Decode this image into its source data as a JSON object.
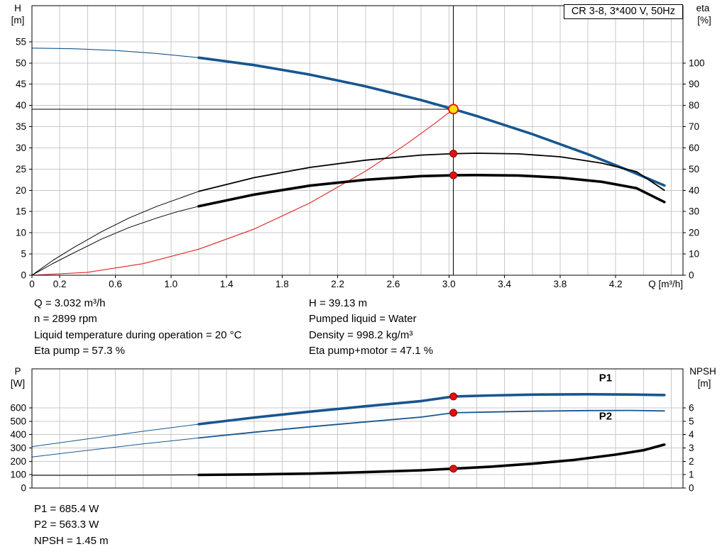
{
  "colors": {
    "blue": "#17568f",
    "black": "#000000",
    "red": "#e02222",
    "grid": "#c8c8c8",
    "dot_fill": "#e01111",
    "dot_edge": "#8f0000",
    "marker_fill": "#ffe200",
    "marker_ring": "#e01111"
  },
  "info_top": {
    "left": [
      "Q = 3.032 m³/h",
      "n = 2899 rpm",
      "Liquid temperature during operation = 20 °C",
      "Eta pump = 57.3 %"
    ],
    "right": [
      "H = 39.13 m",
      "Pumped liquid = Water",
      "Density = 998.2 kg/m³",
      "Eta pump+motor = 47.1 %"
    ]
  },
  "info_bottom": [
    "P1 = 685.4 W",
    "P2 = 563.3 W",
    "NPSH = 1.45 m"
  ],
  "chart_data": [
    {
      "id": "top",
      "type": "line",
      "title": "CR 3-8, 3*400 V, 50Hz",
      "x": {
        "label": "Q [m³/h]",
        "min": 0,
        "max": 4.684,
        "grid_step": 0.2,
        "ticks": [
          [
            0,
            "0"
          ],
          [
            0.2,
            "0.2"
          ],
          [
            0.6,
            "0.6"
          ],
          [
            1,
            "1.0"
          ],
          [
            1.4,
            "1.4"
          ],
          [
            1.8,
            "1.8"
          ],
          [
            2.2,
            "2.2"
          ],
          [
            2.6,
            "2.6"
          ],
          [
            3,
            "3.0"
          ],
          [
            3.4,
            "3.4"
          ],
          [
            3.8,
            "3.8"
          ],
          [
            4.2,
            "4.2"
          ]
        ]
      },
      "y_left": {
        "label": [
          "H",
          "[m]"
        ],
        "min": 0,
        "max": 63.5,
        "ticks": [
          [
            0,
            "0"
          ],
          [
            5,
            "5"
          ],
          [
            10,
            "10"
          ],
          [
            15,
            "15"
          ],
          [
            20,
            "20"
          ],
          [
            25,
            "25"
          ],
          [
            30,
            "30"
          ],
          [
            35,
            "35"
          ],
          [
            40,
            "40"
          ],
          [
            45,
            "45"
          ],
          [
            50,
            "50"
          ],
          [
            55,
            "55"
          ]
        ]
      },
      "y_right": {
        "label": [
          "eta",
          "[%]"
        ],
        "min": 0,
        "max": 127,
        "ticks": [
          [
            0,
            "0"
          ],
          [
            10,
            "10"
          ],
          [
            20,
            "20"
          ],
          [
            30,
            "30"
          ],
          [
            40,
            "40"
          ],
          [
            50,
            "50"
          ],
          [
            60,
            "60"
          ],
          [
            70,
            "70"
          ],
          [
            80,
            "80"
          ],
          [
            90,
            "90"
          ],
          [
            100,
            "100"
          ]
        ]
      },
      "series": [
        {
          "name": "hq-curve-thin",
          "axis": "left",
          "color": "#17568f",
          "width": 1.1,
          "points": [
            [
              0,
              53.5
            ],
            [
              0.3,
              53.36
            ],
            [
              0.6,
              52.94
            ],
            [
              0.9,
              52.23
            ],
            [
              1.2,
              51.25
            ]
          ]
        },
        {
          "name": "hq-curve",
          "axis": "left",
          "color": "#17568f",
          "width": 3.6,
          "points": [
            [
              1.2,
              51.25
            ],
            [
              1.6,
              49.5
            ],
            [
              2.0,
              47.25
            ],
            [
              2.4,
              44.5
            ],
            [
              2.8,
              41.25
            ],
            [
              3.032,
              39.13
            ],
            [
              3.2,
              37.5
            ],
            [
              3.6,
              33.24
            ],
            [
              4.0,
              28.5
            ],
            [
              4.3,
              24.59
            ],
            [
              4.55,
              21.14
            ]
          ]
        },
        {
          "name": "system-curve",
          "axis": "left",
          "color": "#e02222",
          "width": 1.1,
          "points": [
            [
              0,
              0
            ],
            [
              0.4,
              0.68
            ],
            [
              0.8,
              2.72
            ],
            [
              1.2,
              6.13
            ],
            [
              1.6,
              10.89
            ],
            [
              2.0,
              17.02
            ],
            [
              2.4,
              24.51
            ],
            [
              2.7,
              31.03
            ],
            [
              2.9,
              35.79
            ],
            [
              3.032,
              39.13
            ]
          ]
        },
        {
          "name": "eta-pump-curve-thin",
          "axis": "right",
          "color": "#000000",
          "width": 1,
          "points": [
            [
              0,
              0
            ],
            [
              0.15,
              7
            ],
            [
              0.3,
              13
            ],
            [
              0.5,
              20.5
            ],
            [
              0.7,
              27
            ],
            [
              0.9,
              32.5
            ],
            [
              1.05,
              36
            ],
            [
              1.2,
              39.5
            ]
          ]
        },
        {
          "name": "eta-pump-curve",
          "axis": "right",
          "color": "#000000",
          "width": 1.8,
          "points": [
            [
              1.2,
              39.5
            ],
            [
              1.6,
              46
            ],
            [
              2.0,
              50.8
            ],
            [
              2.4,
              54.2
            ],
            [
              2.8,
              56.6
            ],
            [
              3.032,
              57.3
            ],
            [
              3.2,
              57.5
            ],
            [
              3.5,
              57.2
            ],
            [
              3.8,
              55.8
            ],
            [
              4.1,
              52.8
            ],
            [
              4.35,
              48.8
            ],
            [
              4.55,
              40
            ]
          ]
        },
        {
          "name": "eta-pump-motor-curve-thin",
          "axis": "right",
          "color": "#000000",
          "width": 1,
          "points": [
            [
              0,
              0
            ],
            [
              0.15,
              5.5
            ],
            [
              0.3,
              10.5
            ],
            [
              0.5,
              17
            ],
            [
              0.7,
              22.5
            ],
            [
              0.9,
              27
            ],
            [
              1.05,
              30
            ],
            [
              1.2,
              32.5
            ]
          ]
        },
        {
          "name": "eta-pump-motor-curve",
          "axis": "right",
          "color": "#000000",
          "width": 3.6,
          "points": [
            [
              1.2,
              32.5
            ],
            [
              1.6,
              38
            ],
            [
              2.0,
              42.2
            ],
            [
              2.4,
              45
            ],
            [
              2.8,
              46.7
            ],
            [
              3.032,
              47.1
            ],
            [
              3.2,
              47.2
            ],
            [
              3.5,
              47
            ],
            [
              3.8,
              46
            ],
            [
              4.1,
              44
            ],
            [
              4.35,
              41
            ],
            [
              4.55,
              34.5
            ]
          ]
        }
      ],
      "annotations": [
        {
          "name": "head-crosshair-h",
          "type": "hline",
          "axis": "left",
          "value": 39.13,
          "x_from": 0,
          "x_to": 3.032
        },
        {
          "name": "flow-crosshair-v",
          "type": "vline",
          "x": 3.032
        }
      ],
      "markers": [
        {
          "name": "eta-pump-point",
          "style": "dot",
          "axis": "right",
          "q": 3.032,
          "v": 57.3
        },
        {
          "name": "eta-pump-motor-point",
          "style": "dot",
          "axis": "right",
          "q": 3.032,
          "v": 47.1
        },
        {
          "name": "operating-point",
          "style": "op",
          "axis": "left",
          "q": 3.032,
          "v": 39.13
        }
      ],
      "labels": []
    },
    {
      "id": "bottom",
      "type": "line",
      "title": "",
      "x": {
        "label": "",
        "min": 0,
        "max": 4.684,
        "grid_step": 0.2,
        "ticks": []
      },
      "y_left": {
        "label": [
          "P",
          "[W]"
        ],
        "min": 0,
        "max": 892,
        "ticks": [
          [
            0,
            "0"
          ],
          [
            100,
            "100"
          ],
          [
            200,
            "200"
          ],
          [
            300,
            "300"
          ],
          [
            400,
            "400"
          ],
          [
            500,
            "500"
          ],
          [
            600,
            "600"
          ]
        ]
      },
      "y_right": {
        "label": [
          "NPSH",
          "[m]"
        ],
        "min": 0,
        "max": 8.92,
        "ticks": [
          [
            0,
            "0"
          ],
          [
            1,
            "1"
          ],
          [
            2,
            "2"
          ],
          [
            3,
            "3"
          ],
          [
            4,
            "4"
          ],
          [
            5,
            "5"
          ],
          [
            6,
            "6"
          ]
        ]
      },
      "series": [
        {
          "name": "p1-curve-thin",
          "axis": "left",
          "color": "#17568f",
          "width": 1,
          "points": [
            [
              0,
              310
            ],
            [
              0.4,
              368
            ],
            [
              0.8,
              425
            ],
            [
              1.2,
              478
            ]
          ]
        },
        {
          "name": "p1-curve",
          "axis": "left",
          "color": "#17568f",
          "width": 3.6,
          "points": [
            [
              1.2,
              478
            ],
            [
              1.6,
              528
            ],
            [
              2.0,
              572
            ],
            [
              2.4,
              612
            ],
            [
              2.8,
              651
            ],
            [
              3.032,
              685.4
            ],
            [
              3.3,
              693
            ],
            [
              3.6,
              699
            ],
            [
              4.0,
              702
            ],
            [
              4.3,
              700
            ],
            [
              4.55,
              696
            ]
          ]
        },
        {
          "name": "p2-curve-thin",
          "axis": "left",
          "color": "#17568f",
          "width": 1,
          "points": [
            [
              0,
              232
            ],
            [
              0.4,
              282
            ],
            [
              0.8,
              330
            ],
            [
              1.2,
              375
            ]
          ]
        },
        {
          "name": "p2-curve",
          "axis": "left",
          "color": "#17568f",
          "width": 1.8,
          "points": [
            [
              1.2,
              375
            ],
            [
              1.6,
              418
            ],
            [
              2.0,
              458
            ],
            [
              2.4,
              495
            ],
            [
              2.8,
              531
            ],
            [
              3.032,
              563.3
            ],
            [
              3.3,
              569
            ],
            [
              3.6,
              575
            ],
            [
              4.0,
              580
            ],
            [
              4.3,
              581
            ],
            [
              4.55,
              577
            ]
          ]
        },
        {
          "name": "npsh-curve-thin",
          "axis": "right",
          "color": "#000000",
          "width": 1,
          "points": [
            [
              0,
              0.95
            ],
            [
              0.4,
              0.95
            ],
            [
              0.8,
              0.96
            ],
            [
              1.2,
              0.98
            ]
          ]
        },
        {
          "name": "npsh-curve",
          "axis": "right",
          "color": "#000000",
          "width": 3.6,
          "points": [
            [
              1.2,
              0.98
            ],
            [
              1.6,
              1.02
            ],
            [
              2.0,
              1.08
            ],
            [
              2.4,
              1.19
            ],
            [
              2.8,
              1.33
            ],
            [
              3.032,
              1.45
            ],
            [
              3.3,
              1.6
            ],
            [
              3.6,
              1.82
            ],
            [
              3.9,
              2.1
            ],
            [
              4.2,
              2.5
            ],
            [
              4.4,
              2.83
            ],
            [
              4.55,
              3.25
            ]
          ]
        }
      ],
      "annotations": [],
      "markers": [
        {
          "name": "p1-point",
          "style": "dot",
          "axis": "left",
          "q": 3.032,
          "v": 685.4
        },
        {
          "name": "p2-point",
          "style": "dot",
          "axis": "left",
          "q": 3.032,
          "v": 563.3
        },
        {
          "name": "npsh-point",
          "style": "dot",
          "axis": "right",
          "q": 3.032,
          "v": 1.45
        }
      ],
      "labels": [
        {
          "name": "p1-label",
          "axis": "left",
          "q": 4.08,
          "v": 800,
          "text": "P1",
          "color": "#17568f"
        },
        {
          "name": "p2-label",
          "axis": "left",
          "q": 4.08,
          "v": 512,
          "text": "P2",
          "color": "#17568f"
        }
      ]
    }
  ]
}
